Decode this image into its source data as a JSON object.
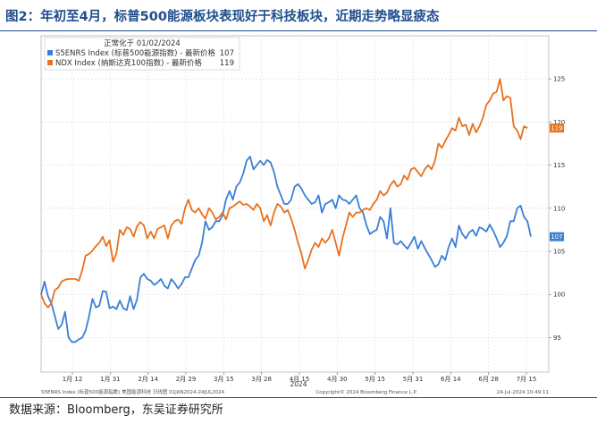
{
  "figure": {
    "title": "图2：年初至4月，标普500能源板块表现好于科技板块，近期走势略显疲态",
    "source": "数据来源：Bloomberg，东吴证券研究所"
  },
  "chart_data": {
    "type": "line",
    "legend": {
      "heading": "正常化于 01/02/2024",
      "placement": "top-left",
      "entries": [
        {
          "name": "S5ENRS Index (标普500能源指数) - 最新价格",
          "last": "107"
        },
        {
          "name": "NDX Index (纳斯达克100指数) - 最新价格",
          "last": "119"
        }
      ]
    },
    "yaxis": {
      "ticks": [
        95,
        100,
        105,
        110,
        115,
        120,
        125
      ],
      "range": [
        91,
        130
      ],
      "side": "right"
    },
    "xaxis": {
      "ticks": [
        "1月 12",
        "1月 31",
        "2月 14",
        "2月 29",
        "3月 15",
        "3月 28",
        "4月 15",
        "4月 30",
        "5月 15",
        "5月 31",
        "6月 14",
        "6月 28",
        "7月 15"
      ],
      "year_label": "2024"
    },
    "footer": {
      "left": "S5ENRS Index (标普500能源指数) 美国能源科技  日线图 01JAN2024-24JUL2024",
      "center": "Copyright© 2024 Bloomberg Finance L.P.",
      "right": "24-Jul-2024 10:49:11"
    },
    "grid": true,
    "series": [
      {
        "name": "S5ENRS Index (标普500能源指数)",
        "color": "#3a7fd5",
        "last_label": "107",
        "values": [
          100.0,
          101.5,
          99.8,
          99.0,
          97.5,
          96.0,
          96.5,
          98.0,
          95.0,
          94.5,
          94.5,
          94.8,
          95.0,
          95.8,
          97.5,
          99.5,
          98.5,
          98.7,
          100.4,
          100.3,
          98.4,
          98.6,
          98.3,
          99.3,
          98.4,
          98.2,
          99.8,
          98.3,
          99.4,
          102.0,
          102.4,
          101.8,
          101.6,
          101.1,
          101.4,
          101.8,
          101.0,
          100.7,
          101.8,
          101.3,
          100.7,
          101.2,
          102.0,
          102.0,
          103.0,
          104.0,
          104.5,
          106.0,
          108.5,
          107.5,
          107.8,
          108.5,
          108.5,
          109.2,
          111.0,
          112.0,
          111.0,
          112.5,
          113.0,
          114.0,
          115.5,
          116.0,
          114.5,
          115.0,
          115.5,
          115.0,
          115.6,
          115.3,
          114.2,
          112.5,
          111.5,
          110.5,
          110.5,
          111.0,
          112.5,
          112.8,
          112.3,
          111.5,
          111.0,
          110.5,
          110.7,
          111.5,
          109.5,
          110.5,
          110.7,
          111.0,
          110.0,
          111.5,
          111.0,
          110.9,
          110.5,
          111.0,
          111.5,
          110.0,
          109.5,
          108.0,
          107.0,
          107.3,
          107.5,
          109.0,
          108.5,
          106.5,
          110.0,
          106.0,
          105.8,
          106.2,
          105.7,
          105.3,
          106.0,
          106.7,
          105.3,
          106.2,
          105.4,
          104.7,
          104.0,
          103.2,
          103.5,
          104.5,
          104.0,
          105.5,
          106.5,
          105.5,
          108.0,
          107.0,
          106.5,
          107.2,
          107.5,
          106.8,
          107.8,
          107.6,
          107.3,
          108.1,
          107.4,
          106.5,
          105.5,
          106.0,
          106.8,
          108.5,
          108.5,
          110.0,
          110.3,
          109.0,
          108.5,
          106.7
        ]
      },
      {
        "name": "NDX Index (纳斯达克100指数)",
        "color": "#e8711f",
        "last_label": "119",
        "values": [
          100.0,
          99.0,
          98.5,
          99.0,
          100.5,
          100.8,
          101.5,
          101.7,
          101.8,
          101.8,
          101.8,
          101.6,
          102.8,
          104.5,
          104.7,
          105.1,
          105.6,
          106.0,
          106.7,
          105.6,
          106.3,
          103.8,
          104.8,
          107.5,
          106.9,
          107.8,
          107.6,
          106.7,
          107.9,
          108.4,
          108.0,
          106.5,
          107.3,
          106.5,
          107.6,
          107.8,
          108.0,
          106.5,
          108.0,
          108.5,
          108.7,
          108.2,
          110.0,
          111.0,
          109.8,
          109.5,
          110.0,
          109.3,
          108.8,
          110.0,
          109.5,
          108.7,
          109.0,
          109.5,
          108.7,
          110.0,
          110.2,
          110.5,
          110.8,
          110.4,
          110.5,
          110.2,
          109.8,
          110.5,
          110.0,
          108.5,
          109.2,
          108.0,
          109.5,
          110.5,
          110.2,
          109.5,
          109.8,
          108.8,
          107.5,
          106.0,
          104.8,
          103.0,
          104.0,
          105.2,
          106.0,
          105.5,
          106.5,
          106.0,
          106.5,
          107.5,
          106.0,
          104.5,
          106.5,
          108.0,
          109.5,
          109.0,
          109.5,
          109.5,
          109.8,
          110.0,
          109.8,
          110.5,
          111.0,
          112.0,
          111.5,
          111.8,
          112.7,
          113.2,
          112.5,
          112.8,
          113.8,
          113.3,
          114.5,
          114.7,
          114.2,
          113.7,
          114.5,
          115.0,
          114.5,
          115.5,
          117.5,
          117.0,
          117.8,
          118.5,
          119.3,
          119.0,
          120.5,
          119.5,
          119.7,
          118.5,
          119.8,
          118.8,
          119.5,
          120.5,
          122.0,
          122.5,
          123.3,
          123.5,
          125.0,
          122.5,
          123.0,
          122.8,
          119.5,
          119.0,
          118.0,
          119.5,
          119.3
        ]
      }
    ]
  }
}
